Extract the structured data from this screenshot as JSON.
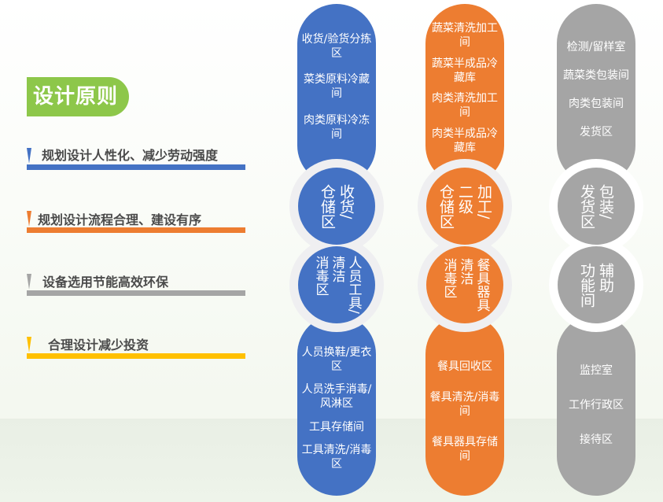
{
  "title": "设计原则",
  "colors": {
    "blue": "#4472c4",
    "orange": "#ed7d31",
    "gray": "#a5a5a5",
    "yellow": "#ffc000",
    "green": "#8dc74a"
  },
  "principles": [
    {
      "text": "规划设计人性化、减少劳动强度",
      "color": "#4472c4"
    },
    {
      "text": "规划设计流程合理、建设有序",
      "color": "#ed7d31"
    },
    {
      "text": "设备选用节能高效环保",
      "color": "#a5a5a5"
    },
    {
      "text": "合理设计减少投资",
      "color": "#ffc000"
    }
  ],
  "columns": [
    {
      "top": [
        "收货/验货分拣区",
        "菜类原料冷藏间",
        "肉类原料冷冻间"
      ],
      "circle1": [
        "收货/",
        "仓储区"
      ],
      "circle2": [
        "人员工具/",
        "清洁",
        "消毒区"
      ],
      "bottom": [
        "人员换鞋/更衣区",
        "人员洗手消毒/风淋区",
        "工具存储间",
        "工具清洗/消毒区"
      ]
    },
    {
      "top": [
        "蔬菜清洗加工间",
        "蔬菜半成品冷藏库",
        "肉类清洗加工间",
        "肉类半成品冷藏库"
      ],
      "circle1": [
        "加工/",
        "二级",
        "仓储区"
      ],
      "circle2": [
        "餐具器具",
        "清洁",
        "消毒区"
      ],
      "bottom": [
        "餐具回收区",
        "餐具清洗/消毒间",
        "餐具器具存储间"
      ]
    },
    {
      "top": [
        "检测/留样室",
        "蔬菜类包装间",
        "肉类包装间",
        "发货区"
      ],
      "circle1": [
        "包装/",
        "发货区"
      ],
      "circle2": [
        "辅助",
        "功能间"
      ],
      "bottom": [
        "监控室",
        "工作行政区",
        "接待区"
      ]
    }
  ]
}
